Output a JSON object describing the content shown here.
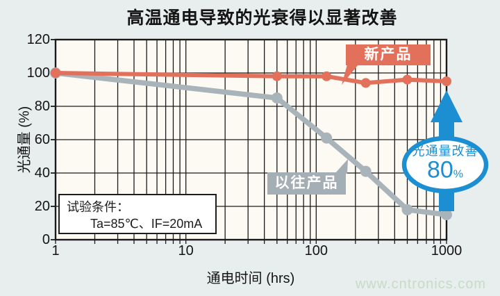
{
  "colors": {
    "page_bg": "#e8edee",
    "plot_bg": "#fcfaf2",
    "grid": "#1a1a1a",
    "new_product": "#e2705a",
    "old_product": "#a3aeb5",
    "old_line": "#a9b4ba",
    "arrow_blue": "#1b8fd2",
    "watermark_green": "#c6dcc6",
    "text": "#141414"
  },
  "watermark": "www.cntronics.com",
  "chart_data": {
    "type": "line",
    "title": "高温通电导致的光衰得以显著改善",
    "xlabel": "通电时间 (hrs)",
    "ylabel": "光通量 (%)",
    "x_scale": "log",
    "xlim": [
      1,
      1000
    ],
    "ylim": [
      0,
      120
    ],
    "x_ticks": [
      "1",
      "10",
      "100",
      "1000"
    ],
    "y_ticks": [
      "0",
      "20",
      "40",
      "60",
      "80",
      "100",
      "120"
    ],
    "grid": "log minor verticals on, horizontals every 20",
    "legend_position": "inline callout labels",
    "series": [
      {
        "name": "以往产品",
        "x": [
          1,
          50,
          120,
          240,
          500,
          1000
        ],
        "values": [
          100,
          85,
          61,
          41,
          18,
          15
        ]
      },
      {
        "name": "新产品",
        "x": [
          1,
          50,
          120,
          240,
          500,
          1000
        ],
        "values": [
          100,
          98,
          98,
          94,
          96,
          95
        ]
      }
    ],
    "annotations": {
      "conditions": {
        "line1": "试验条件：",
        "line2": "Ta=85℃、IF=20mA"
      },
      "improvement": {
        "line1": "光通量改善",
        "value": "80",
        "unit": "%"
      }
    }
  }
}
